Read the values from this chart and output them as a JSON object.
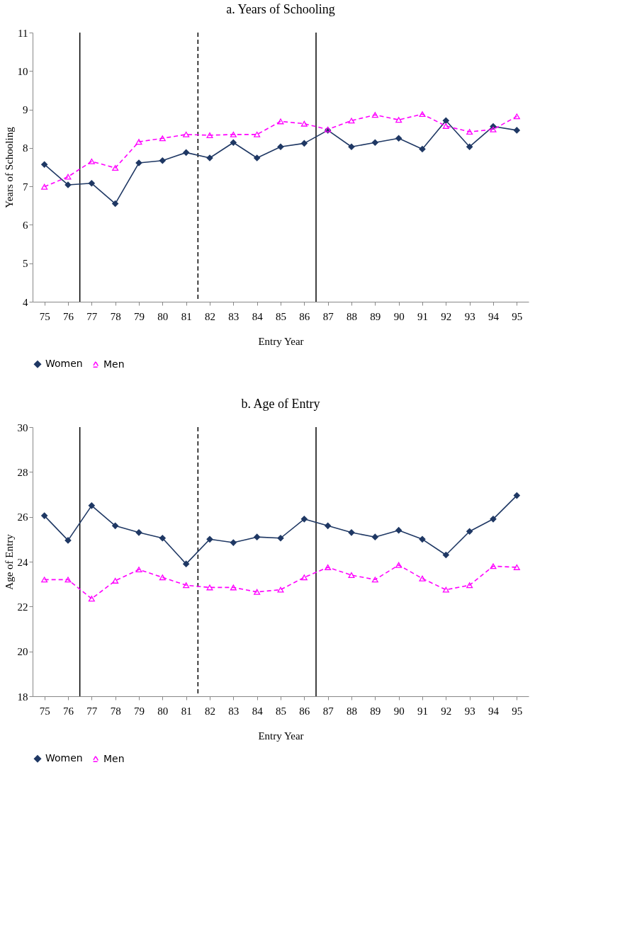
{
  "chart_data": [
    {
      "type": "line",
      "title": "a. Years of Schooling",
      "xlabel": "Entry Year",
      "ylabel": "Years of Schooling",
      "x": [
        75,
        76,
        77,
        78,
        79,
        80,
        81,
        82,
        83,
        84,
        85,
        86,
        87,
        88,
        89,
        90,
        91,
        92,
        93,
        94,
        95
      ],
      "xlim": [
        74.5,
        95.5
      ],
      "xticks": [
        75,
        76,
        77,
        78,
        79,
        80,
        81,
        82,
        83,
        84,
        85,
        86,
        87,
        88,
        89,
        90,
        91,
        92,
        93,
        94,
        95
      ],
      "ylim": [
        4,
        11
      ],
      "yticks": [
        4,
        5,
        6,
        7,
        8,
        9,
        10,
        11
      ],
      "grid": false,
      "legend": "bottom",
      "series": [
        {
          "name": "Women",
          "color": "#1f3864",
          "marker": "diamond",
          "line_style": "solid",
          "values": [
            7.57,
            7.04,
            7.08,
            6.55,
            7.61,
            7.67,
            7.88,
            7.74,
            8.14,
            7.74,
            8.03,
            8.12,
            8.46,
            8.03,
            8.14,
            8.25,
            7.97,
            8.71,
            8.03,
            8.56,
            8.46
          ]
        },
        {
          "name": "Men",
          "color": "#ff00ff",
          "marker": "triangle",
          "line_style": "dashed",
          "values": [
            6.99,
            7.25,
            7.65,
            7.48,
            8.16,
            8.25,
            8.35,
            8.33,
            8.35,
            8.35,
            8.69,
            8.63,
            8.48,
            8.71,
            8.86,
            8.73,
            8.88,
            8.57,
            8.42,
            8.48,
            8.82
          ]
        }
      ],
      "ref_lines": [
        {
          "axis": "x",
          "value": 76.5,
          "color": "#000000",
          "line_style": "solid"
        },
        {
          "axis": "x",
          "value": 81.5,
          "color": "#000000",
          "line_style": "dashed"
        },
        {
          "axis": "x",
          "value": 86.5,
          "color": "#000000",
          "line_style": "solid"
        }
      ]
    },
    {
      "type": "line",
      "title": "b. Age of Entry",
      "xlabel": "Entry Year",
      "ylabel": "Age of Entry",
      "x": [
        75,
        76,
        77,
        78,
        79,
        80,
        81,
        82,
        83,
        84,
        85,
        86,
        87,
        88,
        89,
        90,
        91,
        92,
        93,
        94,
        95
      ],
      "xlim": [
        74.5,
        95.5
      ],
      "xticks": [
        75,
        76,
        77,
        78,
        79,
        80,
        81,
        82,
        83,
        84,
        85,
        86,
        87,
        88,
        89,
        90,
        91,
        92,
        93,
        94,
        95
      ],
      "ylim": [
        18,
        30
      ],
      "yticks": [
        18,
        20,
        22,
        24,
        26,
        28,
        30
      ],
      "grid": false,
      "legend": "bottom",
      "series": [
        {
          "name": "Women",
          "color": "#1f3864",
          "marker": "diamond",
          "line_style": "solid",
          "values": [
            26.05,
            24.95,
            26.5,
            25.6,
            25.3,
            25.05,
            23.9,
            25.0,
            24.85,
            25.1,
            25.05,
            25.9,
            25.6,
            25.3,
            25.1,
            25.4,
            25.0,
            24.3,
            25.35,
            25.9,
            26.95
          ]
        },
        {
          "name": "Men",
          "color": "#ff00ff",
          "marker": "triangle",
          "line_style": "dashed",
          "values": [
            23.2,
            23.2,
            22.35,
            23.15,
            23.65,
            23.3,
            22.95,
            22.85,
            22.85,
            22.65,
            22.75,
            23.3,
            23.75,
            23.4,
            23.2,
            23.85,
            23.25,
            22.75,
            22.95,
            23.8,
            23.75
          ]
        }
      ],
      "ref_lines": [
        {
          "axis": "x",
          "value": 76.5,
          "color": "#000000",
          "line_style": "solid"
        },
        {
          "axis": "x",
          "value": 81.5,
          "color": "#000000",
          "line_style": "dashed"
        },
        {
          "axis": "x",
          "value": 86.5,
          "color": "#000000",
          "line_style": "solid"
        }
      ]
    }
  ]
}
